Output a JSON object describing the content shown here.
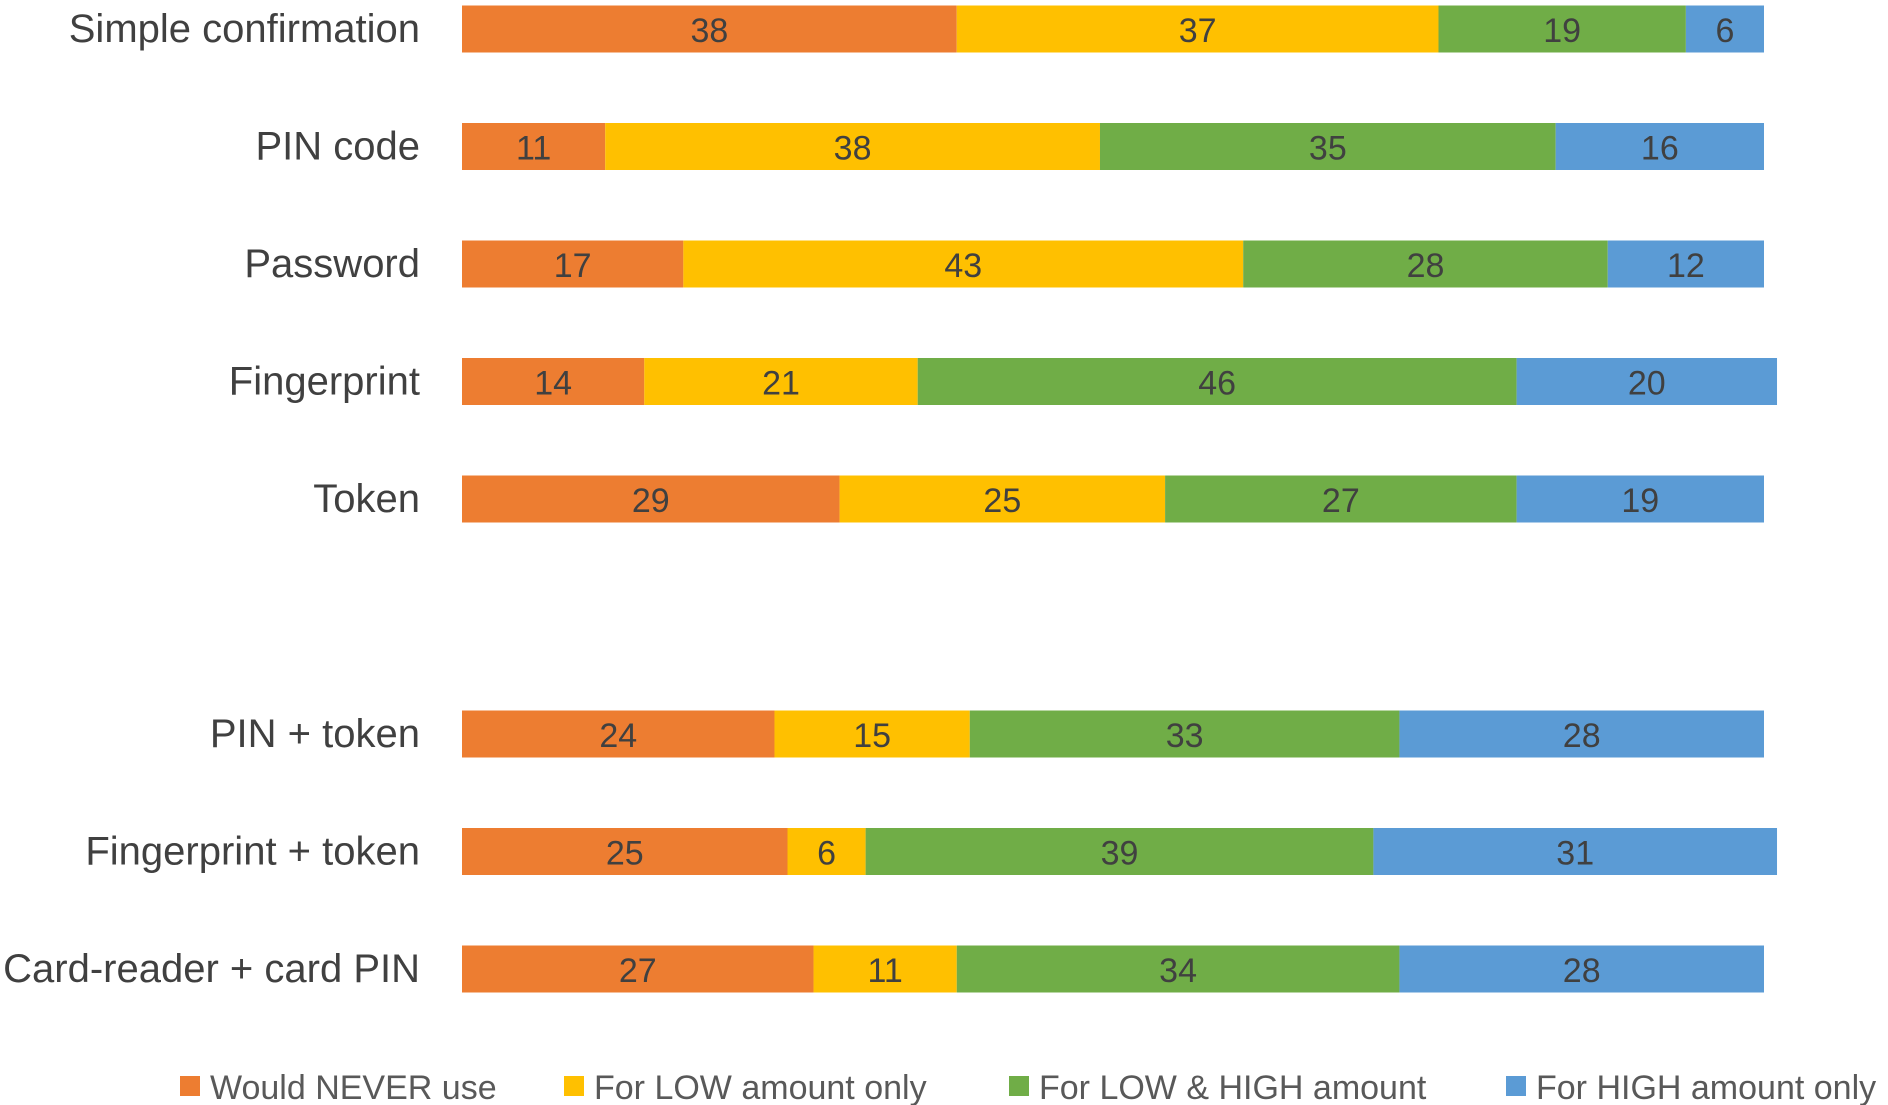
{
  "chart_data": {
    "type": "bar",
    "orientation": "horizontal",
    "stacked": true,
    "categories": [
      "Simple confirmation",
      "PIN code",
      "Password",
      "Fingerprint",
      "Token",
      "",
      "PIN + token",
      "Fingerprint + token",
      "Card-reader + card PIN"
    ],
    "series": [
      {
        "name": "Would NEVER use",
        "color": "#ED7D31",
        "values": [
          38,
          11,
          17,
          14,
          29,
          null,
          24,
          25,
          27
        ]
      },
      {
        "name": "For LOW amount only",
        "color": "#FFC000",
        "values": [
          37,
          38,
          43,
          21,
          25,
          null,
          15,
          6,
          11
        ]
      },
      {
        "name": "For LOW & HIGH amount",
        "color": "#70AD47",
        "values": [
          19,
          35,
          28,
          46,
          27,
          null,
          33,
          39,
          34
        ]
      },
      {
        "name": "For HIGH amount only",
        "color": "#5B9BD5",
        "values": [
          6,
          16,
          12,
          20,
          19,
          null,
          28,
          31,
          28
        ]
      }
    ],
    "xlim": [
      0,
      100
    ],
    "data_labels": true,
    "grid": false,
    "legend": "bottom"
  }
}
